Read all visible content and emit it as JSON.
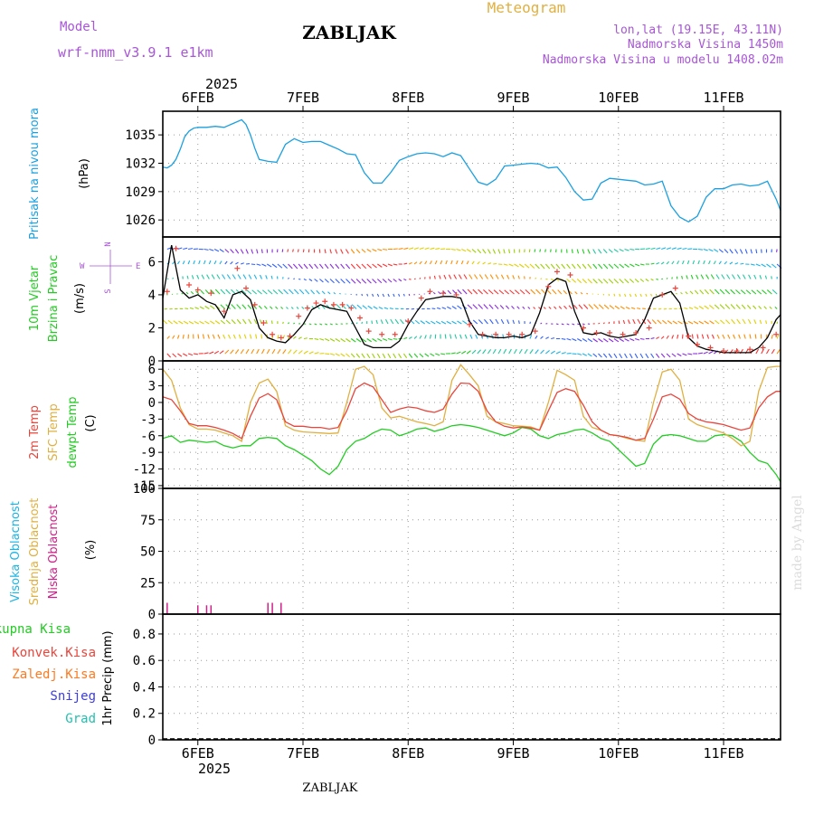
{
  "header": {
    "model_label": "Model",
    "model_name": "wrf-nmm_v3.9.1 e1km",
    "station": "ZABLJAK",
    "product": "Meteogram",
    "lonlat": "lon,lat (19.15E, 43.11N)",
    "elevation": "Nadmorska Visina 1450m",
    "model_elevation": "Nadmorska Visina u modelu 1408.02m",
    "footer_station": "ZABLJAK",
    "watermark": "made by Angel"
  },
  "colors": {
    "pressure": "#1aa0e0",
    "temp2m": "#e8463c",
    "sfc": "#e0b040",
    "dewpt": "#22cc22",
    "high_cloud": "#19b4e6",
    "mid_cloud": "#e0b040",
    "low_cloud": "#d0208a",
    "wind_speed": "#000000",
    "gust": "#e8463c",
    "total_precip": "#22cc22",
    "conv_precip": "#e8463c",
    "freezing": "#ff7a20",
    "snow": "#3c3ce0",
    "hail": "#22c0b0"
  },
  "time_axis": {
    "year": "2025",
    "days": [
      "6FEB",
      "7FEB",
      "8FEB",
      "9FEB",
      "10FEB",
      "11FEB"
    ],
    "start_hour": -8,
    "end_hour": 133
  },
  "panels": {
    "pressure": {
      "title": "Pritisak na nivou mora",
      "unit": "(hPa)",
      "ticks": [
        "1035",
        "1032",
        "1029",
        "1026"
      ]
    },
    "wind": {
      "title1": "10m Vjetar",
      "title2": "Brzina i Pravac",
      "unit": "(m/s)",
      "ticks": [
        "6",
        "4",
        "2",
        "0"
      ],
      "compass": [
        "N",
        "W",
        "E",
        "S"
      ]
    },
    "temp": {
      "title1": "2m Temp",
      "title2": "SFC Temp",
      "title3": "dewpt Temp",
      "unit": "(C)",
      "ticks": [
        "6",
        "3",
        "0",
        "-3",
        "-6",
        "-9",
        "-12",
        "-15"
      ]
    },
    "cloud": {
      "title1": "Visoka Oblacnost",
      "title2": "Srednja Oblacnost",
      "title3": "Niska Oblacnost",
      "unit": "(%)",
      "ticks": [
        "100",
        "75",
        "50",
        "25",
        "0"
      ]
    },
    "precip": {
      "legend": [
        "Ukupna Kisa",
        "Konvek.Kisa",
        "Zaledj.Kisa",
        "Snijeg",
        "Grad"
      ],
      "unit": "1hr Precip (mm)",
      "ticks": [
        "0.8",
        "0.6",
        "0.4",
        "0.2",
        "0"
      ]
    }
  },
  "chart_data": [
    {
      "type": "line",
      "name": "pressure",
      "ylim": [
        1024.2,
        1037.5
      ],
      "x_hours": [
        -8,
        -7,
        -6,
        -5,
        -4,
        -3,
        -2,
        -1,
        0,
        1,
        2,
        4,
        6,
        8,
        10,
        11,
        12,
        13,
        14,
        16,
        18,
        20,
        22,
        24,
        26,
        28,
        30,
        32,
        34,
        36,
        38,
        40,
        42,
        44,
        46,
        48,
        50,
        52,
        54,
        56,
        58,
        60,
        62,
        64,
        66,
        68,
        70,
        72,
        74,
        76,
        78,
        80,
        82,
        84,
        86,
        88,
        90,
        92,
        94,
        96,
        98,
        100,
        102,
        104,
        106,
        108,
        110,
        112,
        114,
        116,
        118,
        120,
        122,
        124,
        126,
        128,
        130,
        132,
        133
      ],
      "values": [
        1031.6,
        1031.5,
        1031.8,
        1032.4,
        1033.5,
        1034.8,
        1035.4,
        1035.7,
        1035.8,
        1035.8,
        1035.8,
        1035.9,
        1035.8,
        1036.2,
        1036.6,
        1036.1,
        1035.0,
        1033.6,
        1032.4,
        1032.2,
        1032.1,
        1034.0,
        1034.6,
        1034.2,
        1034.3,
        1034.3,
        1033.9,
        1033.5,
        1033.0,
        1032.9,
        1031.0,
        1029.9,
        1029.9,
        1031.0,
        1032.3,
        1032.7,
        1033.0,
        1033.1,
        1033.0,
        1032.7,
        1033.1,
        1032.8,
        1031.4,
        1030.0,
        1029.7,
        1030.3,
        1031.7,
        1031.8,
        1031.9,
        1032.0,
        1031.9,
        1031.5,
        1031.6,
        1030.5,
        1029.0,
        1028.1,
        1028.2,
        1029.9,
        1030.4,
        1030.3,
        1030.2,
        1030.1,
        1029.7,
        1029.8,
        1030.1,
        1027.5,
        1026.3,
        1025.8,
        1026.4,
        1028.4,
        1029.3,
        1029.3,
        1029.7,
        1029.8,
        1029.6,
        1029.7,
        1030.1,
        1028.2,
        1027.0
      ]
    },
    {
      "type": "line",
      "name": "wind",
      "ylim": [
        0,
        7.5
      ],
      "x_hours": [
        -8,
        -6,
        -4,
        -2,
        0,
        2,
        4,
        6,
        8,
        10,
        12,
        14,
        16,
        18,
        20,
        22,
        24,
        26,
        28,
        30,
        32,
        34,
        36,
        38,
        40,
        42,
        44,
        46,
        48,
        50,
        52,
        54,
        56,
        58,
        60,
        62,
        64,
        66,
        68,
        70,
        72,
        74,
        76,
        78,
        80,
        82,
        84,
        86,
        88,
        90,
        92,
        94,
        96,
        98,
        100,
        102,
        104,
        106,
        108,
        110,
        112,
        114,
        116,
        118,
        120,
        122,
        124,
        126,
        128,
        130,
        132,
        133
      ],
      "speed": [
        3.8,
        7.0,
        4.3,
        3.8,
        4.0,
        3.6,
        3.4,
        2.6,
        4.0,
        4.2,
        3.7,
        2.0,
        1.4,
        1.2,
        1.1,
        1.6,
        2.2,
        3.1,
        3.4,
        3.2,
        3.1,
        3.0,
        2.0,
        1.0,
        0.8,
        0.8,
        0.8,
        1.2,
        2.2,
        3.0,
        3.7,
        3.8,
        3.9,
        3.9,
        3.8,
        2.4,
        1.6,
        1.5,
        1.4,
        1.4,
        1.5,
        1.4,
        1.6,
        2.9,
        4.6,
        5.0,
        4.8,
        3.0,
        1.7,
        1.6,
        1.7,
        1.5,
        1.4,
        1.5,
        1.6,
        2.5,
        3.8,
        4.0,
        4.2,
        3.5,
        1.4,
        0.9,
        0.7,
        0.6,
        0.5,
        0.5,
        0.5,
        0.5,
        0.8,
        1.4,
        2.5,
        2.8
      ],
      "gust_x": [
        -7,
        -5,
        -2,
        0,
        3,
        6,
        9,
        11,
        13,
        15,
        17,
        19,
        21,
        23,
        25,
        27,
        29,
        31,
        33,
        35,
        37,
        39,
        42,
        45,
        48,
        51,
        53,
        56,
        59,
        62,
        65,
        68,
        71,
        74,
        77,
        80,
        82,
        85,
        88,
        91,
        94,
        97,
        100,
        103,
        106,
        109,
        112,
        114,
        117,
        120,
        123,
        126,
        129,
        132
      ],
      "gust": [
        4.2,
        6.8,
        4.6,
        4.3,
        4.1,
        3.0,
        5.6,
        4.4,
        3.4,
        2.3,
        1.6,
        1.4,
        1.5,
        2.7,
        3.2,
        3.5,
        3.6,
        3.4,
        3.4,
        3.2,
        2.6,
        1.8,
        1.6,
        1.6,
        2.4,
        3.8,
        4.2,
        4.1,
        4.0,
        2.2,
        1.6,
        1.6,
        1.6,
        1.6,
        1.8,
        4.5,
        5.4,
        5.2,
        2.0,
        1.7,
        1.7,
        1.6,
        1.7,
        2.0,
        4.0,
        4.4,
        1.5,
        1.0,
        0.8,
        0.6,
        0.6,
        0.7,
        0.8,
        1.6
      ]
    },
    {
      "type": "line",
      "name": "temperature",
      "ylim": [
        -15.5,
        7.5
      ],
      "x_hours": [
        -8,
        -6,
        -4,
        -2,
        0,
        2,
        4,
        6,
        8,
        10,
        12,
        14,
        16,
        18,
        20,
        22,
        24,
        26,
        28,
        30,
        32,
        34,
        36,
        38,
        40,
        42,
        44,
        46,
        48,
        50,
        52,
        54,
        56,
        58,
        60,
        62,
        64,
        66,
        68,
        70,
        72,
        74,
        76,
        78,
        80,
        82,
        84,
        86,
        88,
        90,
        92,
        94,
        96,
        98,
        100,
        102,
        104,
        106,
        108,
        110,
        112,
        114,
        116,
        118,
        120,
        122,
        124,
        126,
        128,
        130,
        132,
        133
      ],
      "temp_2m": [
        1.0,
        0.5,
        -1.5,
        -3.8,
        -4.2,
        -4.2,
        -4.5,
        -5.0,
        -5.6,
        -6.5,
        -2.5,
        0.8,
        1.6,
        0.5,
        -3.5,
        -4.3,
        -4.3,
        -4.5,
        -4.5,
        -4.8,
        -4.5,
        -1.5,
        2.5,
        3.5,
        2.8,
        0.5,
        -1.8,
        -1.2,
        -0.8,
        -1.0,
        -1.5,
        -1.8,
        -1.2,
        1.5,
        3.5,
        3.4,
        2.0,
        -1.5,
        -3.5,
        -4.3,
        -4.6,
        -4.4,
        -4.6,
        -5.0,
        -1.5,
        1.8,
        2.5,
        2.0,
        -0.5,
        -3.5,
        -5.0,
        -5.8,
        -6.0,
        -6.3,
        -6.8,
        -6.5,
        -3.0,
        1.0,
        1.5,
        0.6,
        -2.0,
        -3.0,
        -3.5,
        -3.7,
        -4.0,
        -4.5,
        -5.0,
        -4.6,
        -1.0,
        1.0,
        2.0,
        2.0
      ],
      "sfc": [
        6.0,
        4.0,
        -1.0,
        -4.0,
        -4.8,
        -4.8,
        -5.0,
        -5.5,
        -6.0,
        -7.0,
        0.0,
        3.5,
        4.2,
        2.0,
        -4.2,
        -5.0,
        -5.3,
        -5.4,
        -5.5,
        -5.6,
        -5.5,
        0.0,
        6.0,
        6.5,
        5.0,
        -1.0,
        -2.8,
        -2.5,
        -3.0,
        -3.5,
        -3.8,
        -4.2,
        -3.5,
        4.0,
        6.8,
        5.0,
        3.0,
        -2.5,
        -3.5,
        -3.8,
        -4.2,
        -4.3,
        -4.4,
        -5.0,
        0.0,
        5.8,
        5.0,
        4.0,
        -2.5,
        -4.5,
        -5.0,
        -5.8,
        -6.0,
        -6.5,
        -6.8,
        -7.0,
        0.0,
        5.5,
        6.0,
        4.0,
        -3.0,
        -4.0,
        -4.5,
        -5.0,
        -5.5,
        -6.5,
        -7.8,
        -7.0,
        2.0,
        6.3,
        6.5,
        6.5
      ],
      "dewpt": [
        -6.5,
        -6.0,
        -7.2,
        -6.8,
        -7.0,
        -7.2,
        -7.0,
        -7.8,
        -8.2,
        -7.8,
        -7.8,
        -6.5,
        -6.3,
        -6.5,
        -7.8,
        -8.5,
        -9.5,
        -10.5,
        -12.0,
        -13.0,
        -11.5,
        -8.5,
        -7.0,
        -6.5,
        -5.5,
        -4.8,
        -5.0,
        -6.0,
        -5.5,
        -4.8,
        -4.6,
        -5.2,
        -4.8,
        -4.2,
        -4.0,
        -4.2,
        -4.5,
        -5.0,
        -5.5,
        -6.0,
        -5.5,
        -4.5,
        -4.8,
        -6.0,
        -6.5,
        -5.8,
        -5.5,
        -5.0,
        -4.8,
        -5.5,
        -6.5,
        -7.0,
        -8.5,
        -10.0,
        -11.5,
        -11.0,
        -7.5,
        -6.0,
        -5.8,
        -6.0,
        -6.5,
        -7.0,
        -7.0,
        -6.0,
        -5.8,
        -6.0,
        -7.0,
        -9.0,
        -10.5,
        -11.0,
        -13.0,
        -14.3
      ]
    },
    {
      "type": "bar",
      "name": "cloud",
      "ylim": [
        0,
        100
      ],
      "low_cloud_x": [
        -7,
        0,
        2,
        3,
        16,
        17,
        19
      ],
      "low_cloud_values": [
        9,
        7,
        7,
        7,
        9,
        9,
        9
      ]
    },
    {
      "type": "bar",
      "name": "precipitation",
      "ylim": [
        0,
        0.95
      ],
      "values": []
    }
  ]
}
